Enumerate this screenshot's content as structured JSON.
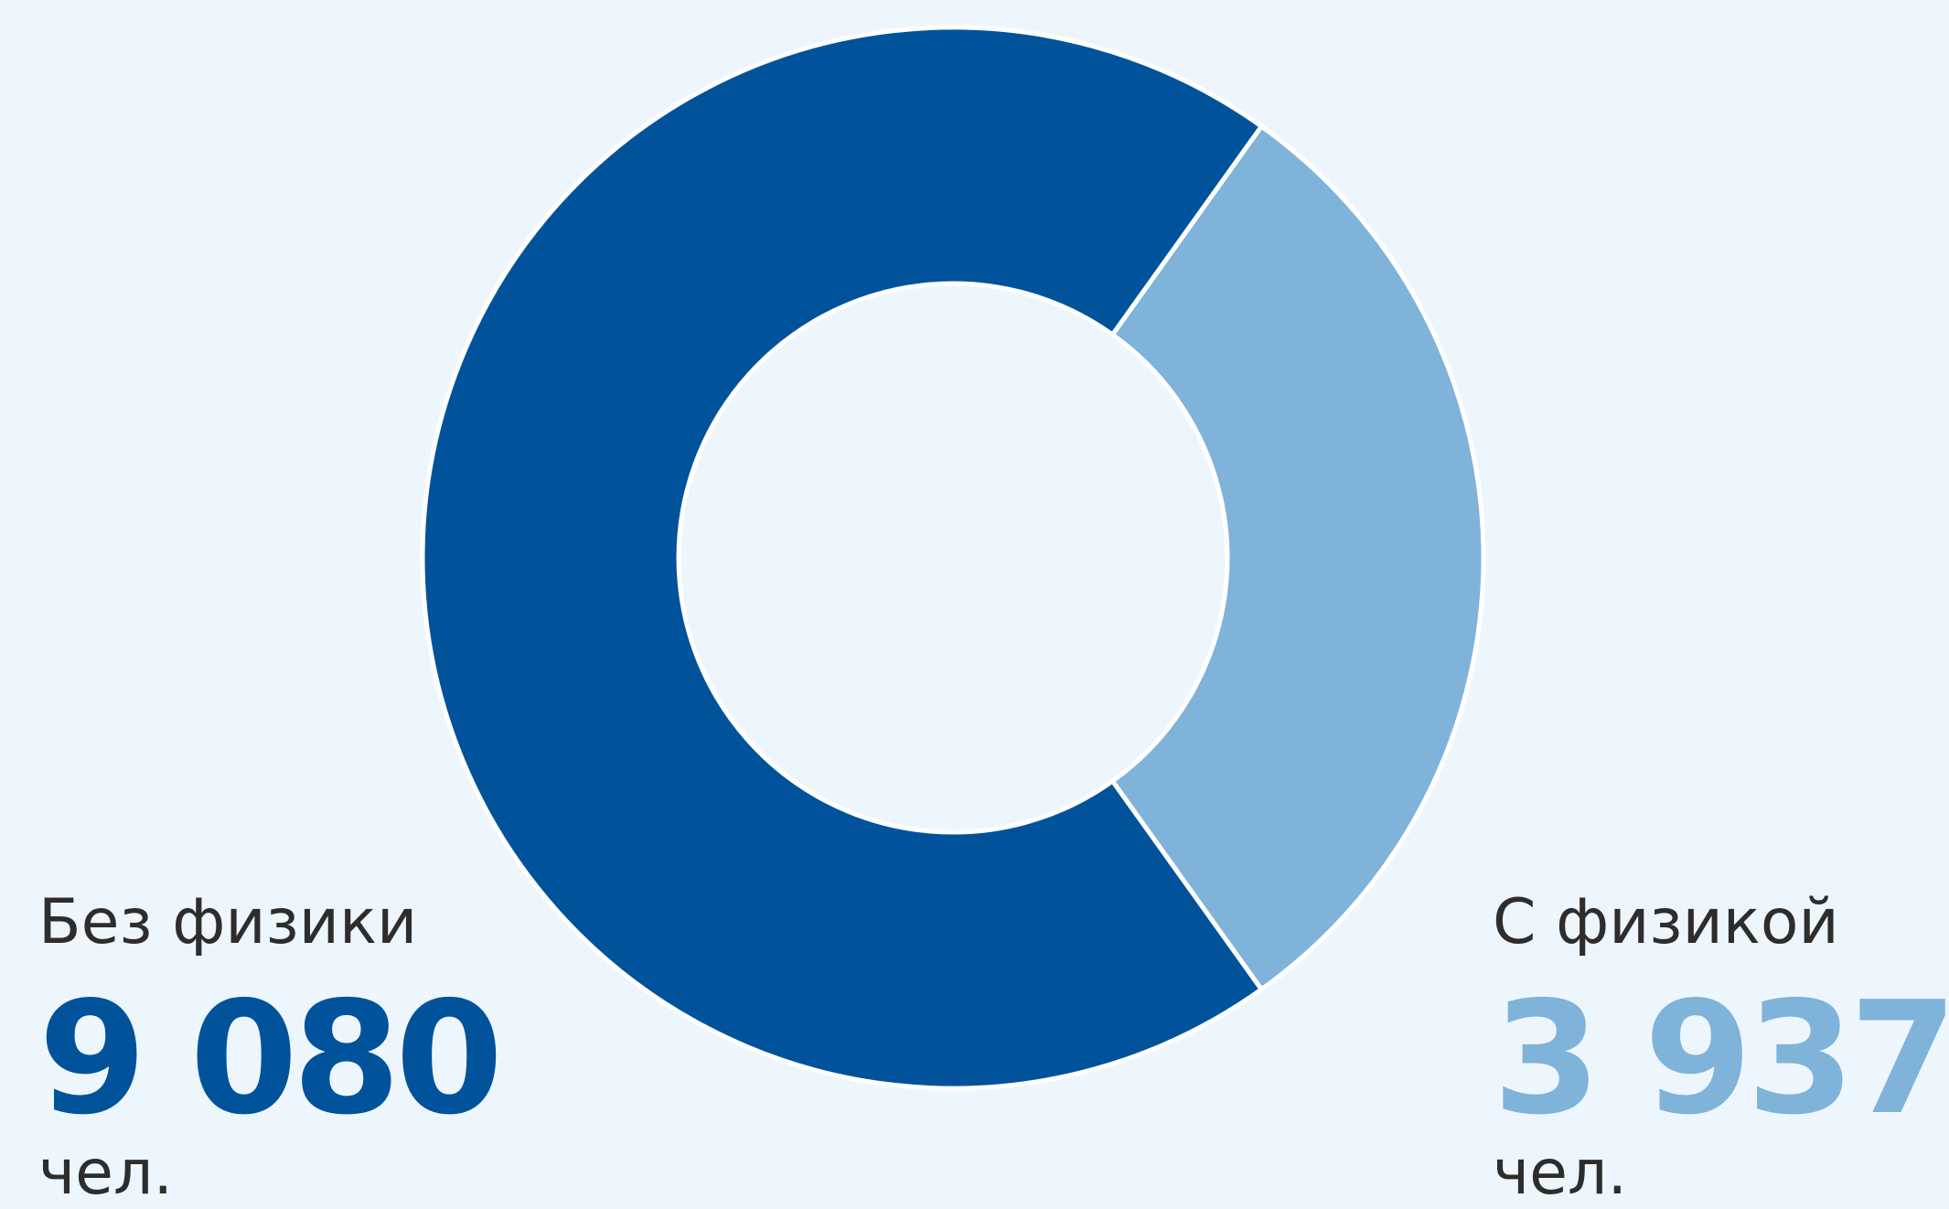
{
  "chart_data": {
    "type": "pie",
    "donut": true,
    "categories": [
      "Без физики",
      "С физикой"
    ],
    "values": [
      9080,
      3937
    ],
    "value_labels": [
      "9 080",
      "3 937"
    ],
    "unit": "чел.",
    "colors": [
      "#00539b",
      "#7fb3da"
    ],
    "title": ""
  },
  "legend": {
    "left": {
      "label": "Без физики",
      "value": "9 080",
      "unit": "чел.",
      "color": "#00539b"
    },
    "right": {
      "label": "С физикой",
      "value": "3 937",
      "unit": "чел.",
      "color": "#7fb3da"
    }
  }
}
